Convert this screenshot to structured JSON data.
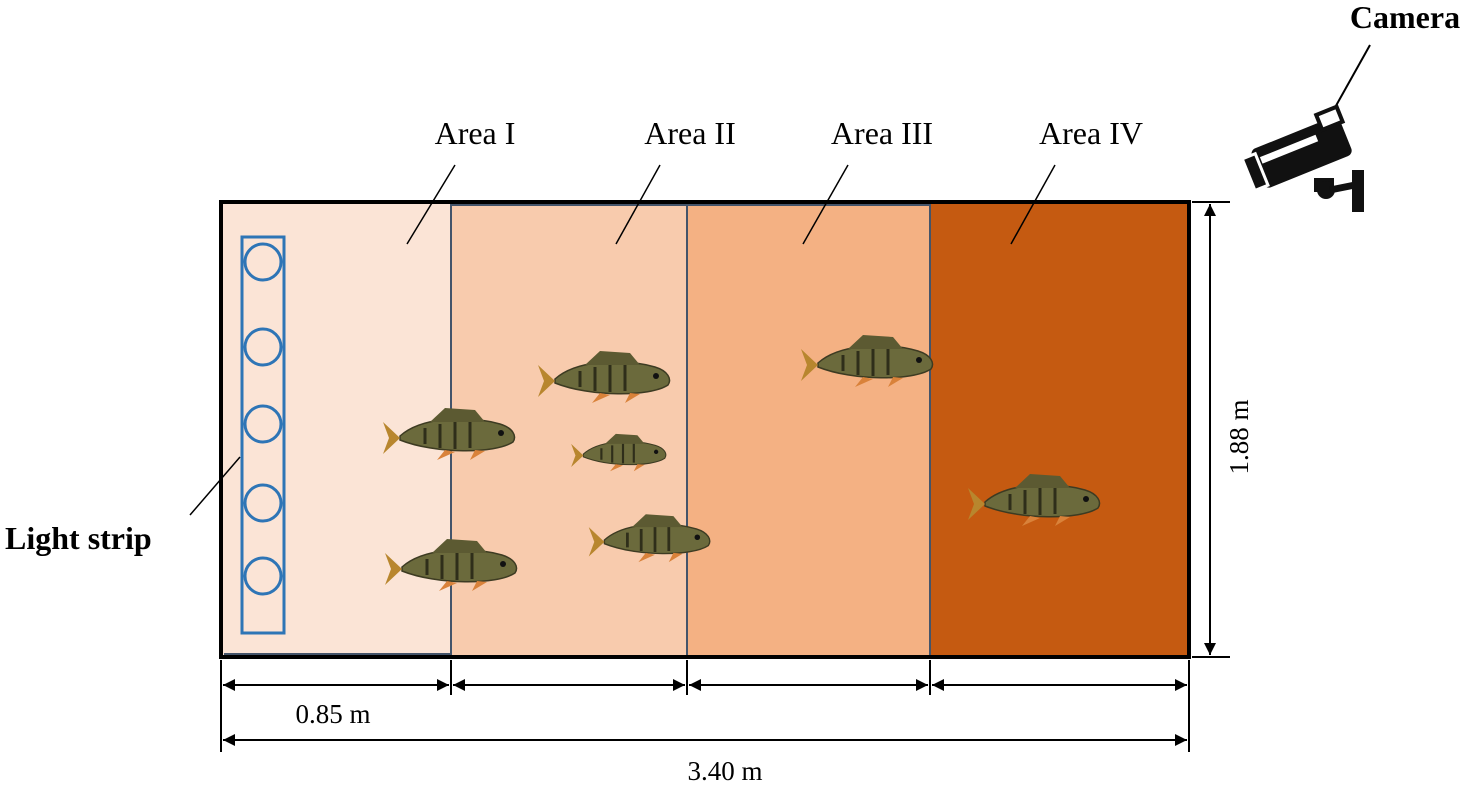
{
  "camera": "Camera",
  "light_strip": "Light strip",
  "areas": [
    "Area I",
    "Area II",
    "Area III",
    "Area IV"
  ],
  "dimensions": {
    "segment": "0.85 m",
    "length": "3.40 m",
    "width": "1.88 m"
  }
}
